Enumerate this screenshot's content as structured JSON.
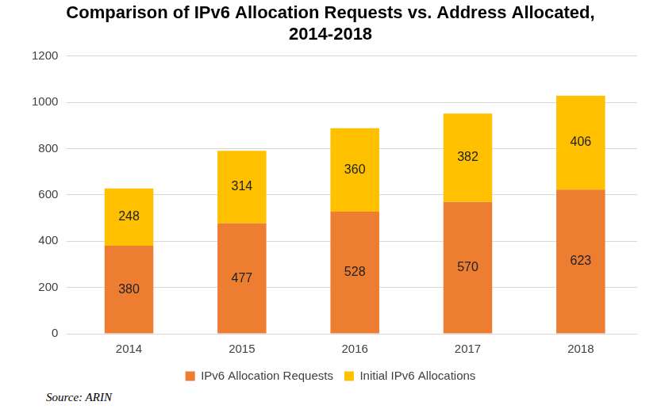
{
  "chart_data": {
    "type": "bar",
    "title": [
      "Comparison of IPv6 Allocation Requests vs. Address Allocated,",
      "2014-2018"
    ],
    "categories": [
      "2014",
      "2015",
      "2016",
      "2017",
      "2018"
    ],
    "series": [
      {
        "name": "IPv6 Allocation Requests",
        "color": "#ED7D31",
        "values": [
          380,
          477,
          528,
          570,
          623
        ]
      },
      {
        "name": "Initial IPv6 Allocations",
        "color": "#FFC000",
        "values": [
          248,
          314,
          360,
          382,
          406
        ]
      }
    ],
    "ylim": [
      0,
      1200
    ],
    "yticks": [
      0,
      200,
      400,
      600,
      800,
      1000,
      1200
    ],
    "grid": true,
    "legend": "bottom",
    "stacked": true,
    "data_labels": true,
    "annotations": [
      "Source: ARIN"
    ]
  }
}
